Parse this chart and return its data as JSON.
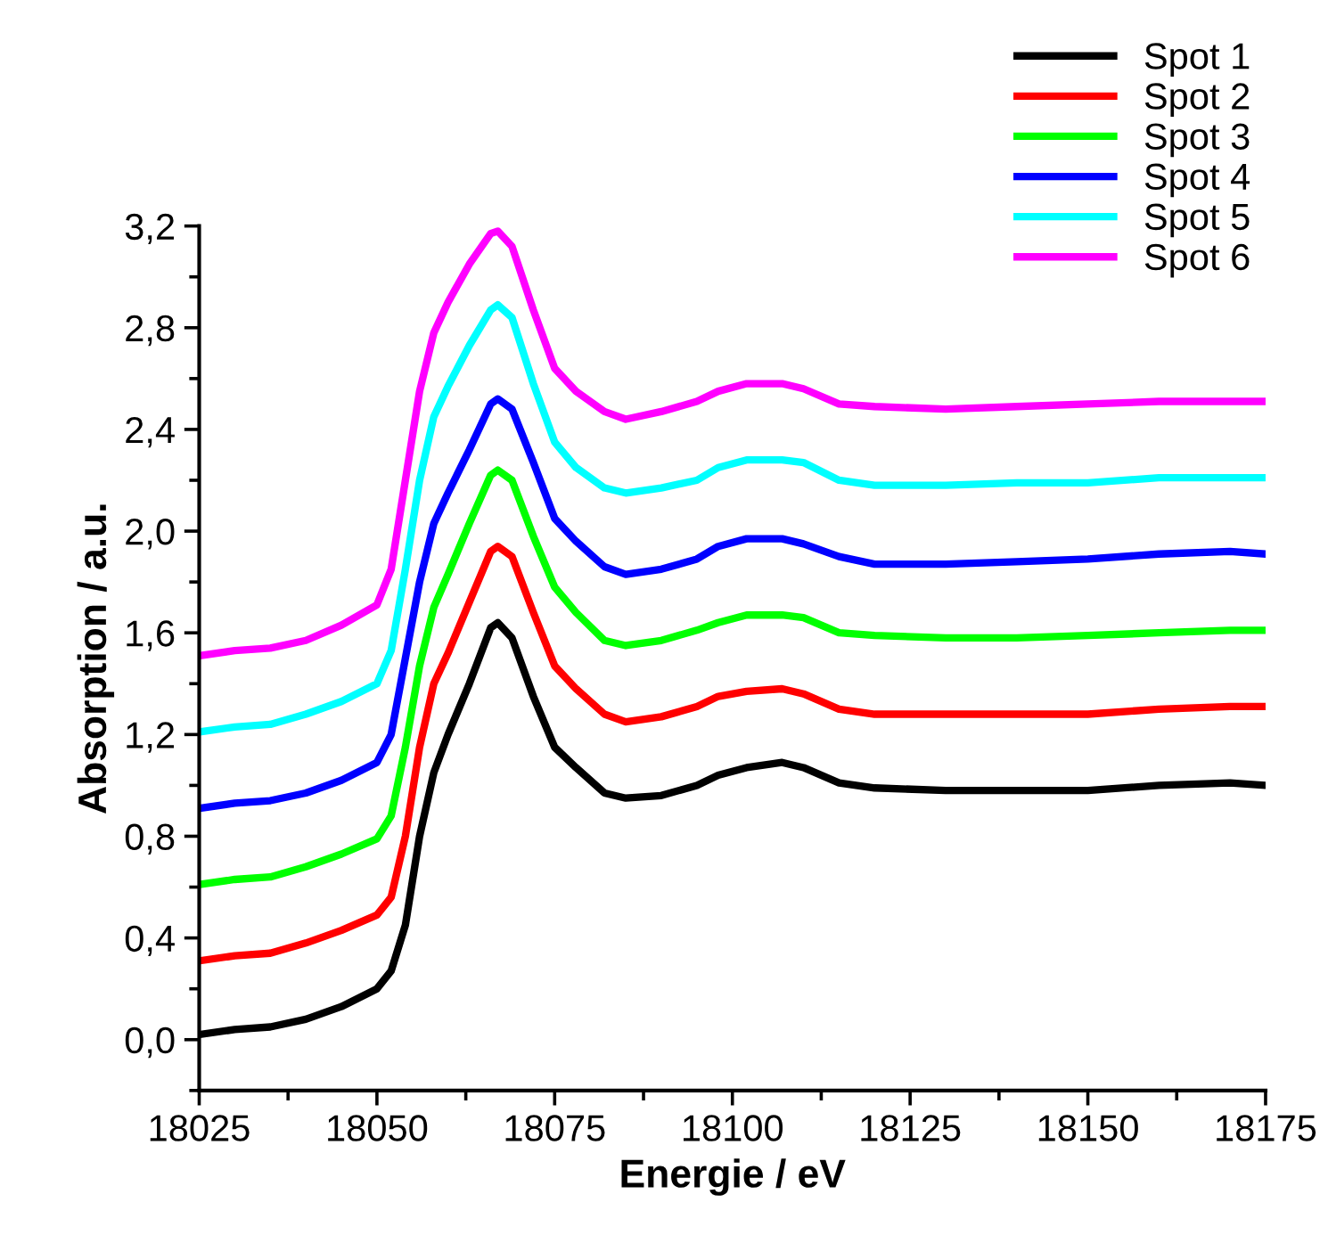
{
  "chart_data": {
    "type": "line",
    "xlabel": "Energie / eV",
    "ylabel": "Absorption / a.u.",
    "x": [
      18025,
      18030,
      18035,
      18040,
      18045,
      18050,
      18052,
      18054,
      18056,
      18058,
      18060,
      18063,
      18066,
      18067,
      18069,
      18072,
      18075,
      18078,
      18082,
      18085,
      18090,
      18095,
      18098,
      18102,
      18107,
      18110,
      18115,
      18120,
      18130,
      18140,
      18150,
      18160,
      18170,
      18175
    ],
    "series": [
      {
        "name": "Spot 1",
        "color": "#000000",
        "values": [
          0.02,
          0.04,
          0.05,
          0.08,
          0.13,
          0.2,
          0.27,
          0.45,
          0.8,
          1.05,
          1.2,
          1.4,
          1.62,
          1.64,
          1.58,
          1.35,
          1.15,
          1.07,
          0.97,
          0.95,
          0.96,
          1.0,
          1.04,
          1.07,
          1.09,
          1.07,
          1.01,
          0.99,
          0.98,
          0.98,
          0.98,
          1.0,
          1.01,
          1.0
        ]
      },
      {
        "name": "Spot 2",
        "color": "#ff0000",
        "values": [
          0.31,
          0.33,
          0.34,
          0.38,
          0.43,
          0.49,
          0.56,
          0.8,
          1.15,
          1.4,
          1.52,
          1.72,
          1.92,
          1.94,
          1.9,
          1.68,
          1.47,
          1.38,
          1.28,
          1.25,
          1.27,
          1.31,
          1.35,
          1.37,
          1.38,
          1.36,
          1.3,
          1.28,
          1.28,
          1.28,
          1.28,
          1.3,
          1.31,
          1.31
        ]
      },
      {
        "name": "Spot 3",
        "color": "#00ff00",
        "values": [
          0.61,
          0.63,
          0.64,
          0.68,
          0.73,
          0.79,
          0.88,
          1.15,
          1.47,
          1.7,
          1.83,
          2.03,
          2.22,
          2.24,
          2.2,
          1.98,
          1.78,
          1.68,
          1.57,
          1.55,
          1.57,
          1.61,
          1.64,
          1.67,
          1.67,
          1.66,
          1.6,
          1.59,
          1.58,
          1.58,
          1.59,
          1.6,
          1.61,
          1.61
        ]
      },
      {
        "name": "Spot 4",
        "color": "#0000ff",
        "values": [
          0.91,
          0.93,
          0.94,
          0.97,
          1.02,
          1.09,
          1.2,
          1.5,
          1.8,
          2.03,
          2.15,
          2.32,
          2.5,
          2.52,
          2.48,
          2.27,
          2.05,
          1.96,
          1.86,
          1.83,
          1.85,
          1.89,
          1.94,
          1.97,
          1.97,
          1.95,
          1.9,
          1.87,
          1.87,
          1.88,
          1.89,
          1.91,
          1.92,
          1.91
        ]
      },
      {
        "name": "Spot 5",
        "color": "#00ffff",
        "values": [
          1.21,
          1.23,
          1.24,
          1.28,
          1.33,
          1.4,
          1.53,
          1.85,
          2.2,
          2.45,
          2.57,
          2.73,
          2.87,
          2.89,
          2.84,
          2.58,
          2.35,
          2.25,
          2.17,
          2.15,
          2.17,
          2.2,
          2.25,
          2.28,
          2.28,
          2.27,
          2.2,
          2.18,
          2.18,
          2.19,
          2.19,
          2.21,
          2.21,
          2.21
        ]
      },
      {
        "name": "Spot 6",
        "color": "#ff00ff",
        "values": [
          1.51,
          1.53,
          1.54,
          1.57,
          1.63,
          1.71,
          1.85,
          2.2,
          2.55,
          2.78,
          2.9,
          3.05,
          3.17,
          3.18,
          3.12,
          2.87,
          2.64,
          2.55,
          2.47,
          2.44,
          2.47,
          2.51,
          2.55,
          2.58,
          2.58,
          2.56,
          2.5,
          2.49,
          2.48,
          2.49,
          2.5,
          2.51,
          2.51,
          2.51
        ]
      }
    ],
    "xlim": [
      18025,
      18175
    ],
    "xticks": [
      18025,
      18050,
      18075,
      18100,
      18125,
      18150,
      18175
    ],
    "ylim": [
      -0.2,
      3.2
    ],
    "yticks": [
      {
        "value": 0.0,
        "label": "0,0"
      },
      {
        "value": 0.4,
        "label": "0,4"
      },
      {
        "value": 0.8,
        "label": "0,8"
      },
      {
        "value": 1.2,
        "label": "1,2"
      },
      {
        "value": 1.6,
        "label": "1,6"
      },
      {
        "value": 2.0,
        "label": "2,0"
      },
      {
        "value": 2.4,
        "label": "2,4"
      },
      {
        "value": 2.8,
        "label": "2,8"
      },
      {
        "value": 3.2,
        "label": "3,2"
      }
    ],
    "grid": false,
    "legend": "top right",
    "marker": "none",
    "line_style": "solid"
  }
}
